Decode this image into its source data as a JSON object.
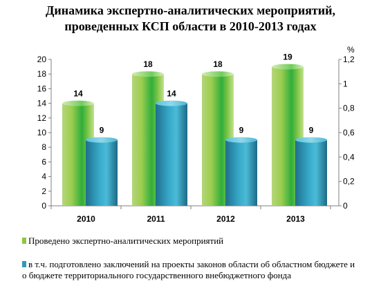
{
  "title_line1": "Динамика экспертно-аналитических мероприятий,",
  "title_line2": "проведенных КСП области в 2010-2013 годах",
  "chart_data": {
    "type": "bar",
    "categories": [
      "2010",
      "2011",
      "2012",
      "2013"
    ],
    "series": [
      {
        "name": "Проведено экспертно-аналитических мероприятий",
        "values": [
          14,
          18,
          18,
          19
        ],
        "color": "#8dc63f"
      },
      {
        "name": "в т.ч. подготовлено заключений на проекты законов области об областном бюджете и о бюджете территориального государственного внебюджетного фонда",
        "values": [
          9,
          14,
          9,
          9
        ],
        "color": "#2e9ab7"
      }
    ],
    "ylim": [
      0,
      20
    ],
    "yticks": [
      0,
      2,
      4,
      6,
      8,
      10,
      12,
      14,
      16,
      18,
      20
    ],
    "y2label": "%",
    "y2lim": [
      0,
      1.2
    ],
    "y2ticks": [
      "0",
      "0,2",
      "0,4",
      "0,6",
      "0,8",
      "1",
      "1,2"
    ],
    "grid": false,
    "legend_position": "bottom"
  },
  "legend": {
    "item1": "Проведено экспертно-аналитических мероприятий",
    "item2_line1": "в т.ч. подготовлено заключений на проекты законов области об областном бюджете и",
    "item2_line2": "о бюджете территориального государственного внебюджетного фонда"
  }
}
